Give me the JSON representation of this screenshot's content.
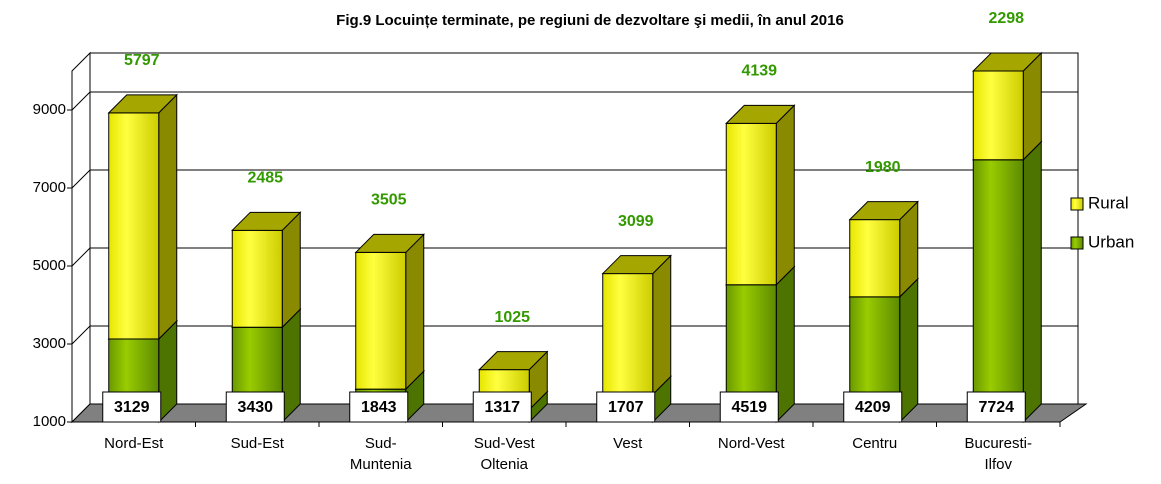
{
  "chart_data": {
    "type": "bar3d-stacked",
    "title": "Fig.9  Locuințe terminate, pe regiuni de dezvoltare şi medii, în anul 2016",
    "categories": [
      "Nord-Est",
      "Sud-Est",
      "Sud-\nMuntenia",
      "Sud-Vest\nOltenia",
      "Vest",
      "Nord-Vest",
      "Centru",
      "Bucuresti-\nIlfov"
    ],
    "series": [
      {
        "name": "Urban",
        "color": "#7fb000",
        "values": [
          3129,
          3430,
          1843,
          1317,
          1707,
          4519,
          4209,
          7724
        ]
      },
      {
        "name": "Rural",
        "color": "#ffff00",
        "values": [
          5797,
          2485,
          3505,
          1025,
          3099,
          4139,
          1980,
          2298
        ]
      }
    ],
    "ylim": [
      1000,
      10000
    ],
    "yticks": [
      1000,
      3000,
      5000,
      7000,
      9000
    ],
    "grid": true,
    "legend": "right"
  }
}
